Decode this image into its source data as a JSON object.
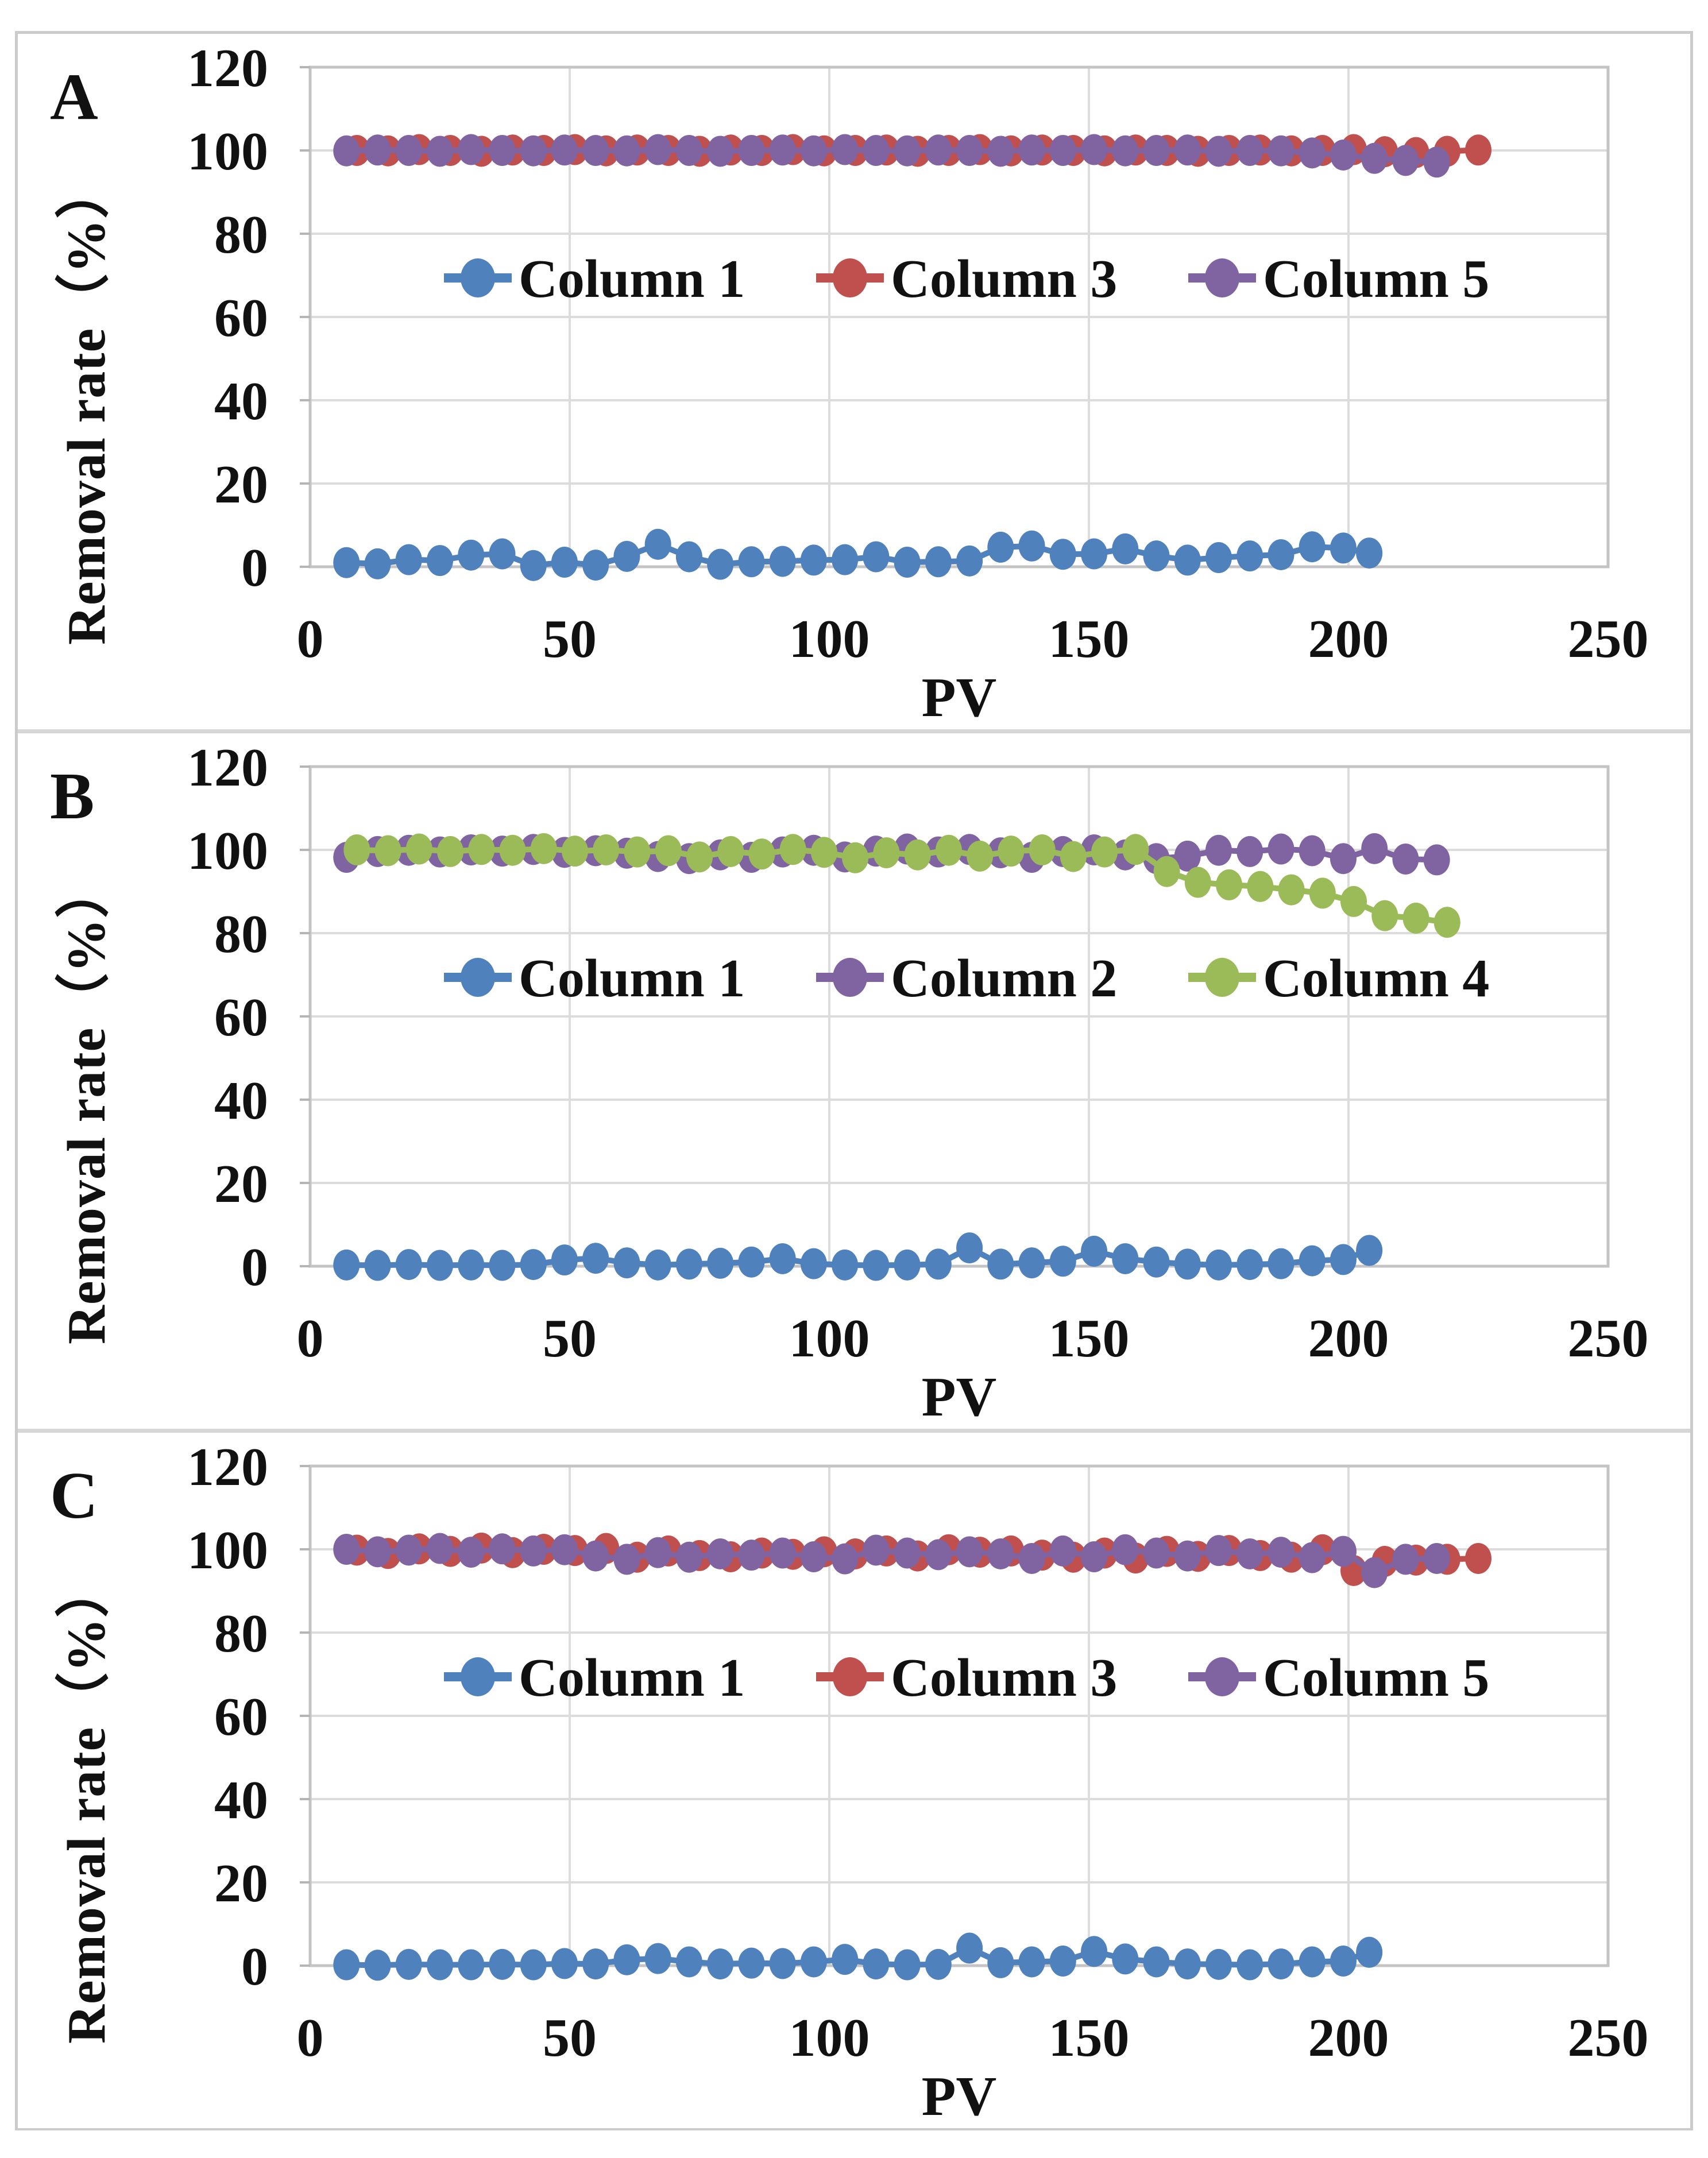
{
  "chart_data": [
    {
      "panel_label": "A",
      "type": "line",
      "xlabel": "PV",
      "ylabel": "Removal rate（%）",
      "xlim": [
        0,
        250
      ],
      "ylim": [
        0,
        120
      ],
      "x_ticks": [
        0,
        50,
        100,
        150,
        200,
        250
      ],
      "y_ticks": [
        0,
        20,
        40,
        60,
        80,
        100,
        120
      ],
      "grid": true,
      "legend_position": "inside-middle",
      "series": [
        {
          "name": "Column 1",
          "color": "#4F81BD",
          "x": [
            7,
            13,
            19,
            25,
            31,
            37,
            43,
            49,
            55,
            61,
            67,
            73,
            79,
            85,
            91,
            97,
            103,
            109,
            115,
            121,
            127,
            133,
            139,
            145,
            151,
            157,
            163,
            169,
            175,
            181,
            187,
            193,
            199,
            204
          ],
          "y": [
            1.0,
            0.7,
            1.7,
            1.5,
            2.8,
            3.1,
            0.3,
            1.1,
            0.4,
            2.5,
            5.4,
            2.4,
            0.6,
            1.2,
            1.3,
            1.6,
            1.7,
            2.4,
            1.1,
            1.2,
            1.4,
            4.7,
            5.0,
            3.0,
            3.1,
            4.3,
            2.6,
            1.6,
            2.2,
            2.6,
            2.9,
            4.8,
            4.5,
            3.3
          ]
        },
        {
          "name": "Column 3",
          "color": "#C0504D",
          "x": [
            9,
            15,
            21,
            27,
            33,
            39,
            45,
            51,
            57,
            63,
            69,
            75,
            81,
            87,
            93,
            99,
            105,
            111,
            117,
            123,
            129,
            135,
            141,
            147,
            153,
            159,
            165,
            171,
            177,
            183,
            189,
            195,
            201,
            207,
            213,
            219,
            225
          ],
          "y": [
            100,
            99.9,
            100.2,
            100,
            99.8,
            100.1,
            100,
            100.2,
            99.9,
            100.1,
            100,
            99.8,
            100.1,
            100,
            100.2,
            99.9,
            100,
            100.1,
            99.8,
            100,
            100.2,
            99.9,
            100.1,
            100,
            99.9,
            100.1,
            100,
            99.8,
            100,
            100.1,
            99.9,
            100,
            100.2,
            99.7,
            99.5,
            99.8,
            100.1
          ]
        },
        {
          "name": "Column 5",
          "color": "#8064A2",
          "x": [
            7,
            13,
            19,
            25,
            31,
            37,
            43,
            49,
            55,
            61,
            67,
            73,
            79,
            85,
            91,
            97,
            103,
            109,
            115,
            121,
            127,
            133,
            139,
            145,
            151,
            157,
            163,
            169,
            175,
            181,
            187,
            193,
            199,
            205,
            211,
            217
          ],
          "y": [
            99.9,
            100.1,
            100,
            99.8,
            100.2,
            100,
            99.9,
            100.1,
            100,
            99.9,
            100.2,
            100,
            99.8,
            100,
            100.1,
            99.9,
            100.2,
            100,
            99.9,
            100.1,
            100,
            99.8,
            100.1,
            100,
            100.2,
            99.9,
            100,
            100.1,
            99.8,
            100,
            99.9,
            99.4,
            98.9,
            98.1,
            97.6,
            97.2
          ]
        }
      ]
    },
    {
      "panel_label": "B",
      "type": "line",
      "xlabel": "PV",
      "ylabel": "Removal rate（%）",
      "xlim": [
        0,
        250
      ],
      "ylim": [
        0,
        120
      ],
      "x_ticks": [
        0,
        50,
        100,
        150,
        200,
        250
      ],
      "y_ticks": [
        0,
        20,
        40,
        60,
        80,
        100,
        120
      ],
      "grid": true,
      "legend_position": "inside-middle",
      "series": [
        {
          "name": "Column 1",
          "color": "#4F81BD",
          "x": [
            7,
            13,
            19,
            25,
            31,
            37,
            43,
            49,
            55,
            61,
            67,
            73,
            79,
            85,
            91,
            97,
            103,
            109,
            115,
            121,
            127,
            133,
            139,
            145,
            151,
            157,
            163,
            169,
            175,
            181,
            187,
            193,
            199,
            204
          ],
          "y": [
            0.3,
            0.2,
            0.4,
            0.2,
            0.3,
            0.2,
            0.4,
            1.5,
            1.9,
            0.8,
            0.3,
            0.5,
            0.7,
            1.0,
            1.8,
            0.6,
            0.3,
            0.2,
            0.3,
            0.5,
            4.4,
            0.5,
            0.8,
            1.2,
            3.6,
            1.8,
            1.0,
            0.5,
            0.3,
            0.4,
            0.6,
            1.3,
            1.6,
            3.8
          ]
        },
        {
          "name": "Column 2",
          "color": "#8064A2",
          "x": [
            7,
            13,
            19,
            25,
            31,
            37,
            43,
            49,
            55,
            61,
            67,
            73,
            79,
            85,
            91,
            97,
            103,
            109,
            115,
            121,
            127,
            133,
            139,
            145,
            151,
            157,
            163,
            169,
            175,
            181,
            187,
            193,
            199,
            205,
            211,
            217
          ],
          "y": [
            98.2,
            99.6,
            99.9,
            99.5,
            100.0,
            99.7,
            100.1,
            99.4,
            99.8,
            99.2,
            98.4,
            97.9,
            98.8,
            98.2,
            99.5,
            99.9,
            98.3,
            99.7,
            100.2,
            99.5,
            100.1,
            99.3,
            98.2,
            99.6,
            100.0,
            98.8,
            97.9,
            98.5,
            99.9,
            99.6,
            100.2,
            99.8,
            97.9,
            100.3,
            97.8,
            97.6
          ]
        },
        {
          "name": "Column 4",
          "color": "#9BBB59",
          "x": [
            9,
            15,
            21,
            27,
            33,
            39,
            45,
            51,
            57,
            63,
            69,
            75,
            81,
            87,
            93,
            99,
            105,
            111,
            117,
            123,
            129,
            135,
            141,
            147,
            153,
            159,
            165,
            171,
            177,
            183,
            189,
            195,
            201,
            207,
            213,
            219
          ],
          "y": [
            100.0,
            99.8,
            100.2,
            99.6,
            100.1,
            99.9,
            100.3,
            99.7,
            100.0,
            99.5,
            99.8,
            98.3,
            99.6,
            99.0,
            100.1,
            99.4,
            98.1,
            99.3,
            98.8,
            99.9,
            98.5,
            99.7,
            100.0,
            98.4,
            99.5,
            100.1,
            94.8,
            92.2,
            91.6,
            91.2,
            90.4,
            89.6,
            87.6,
            84.2,
            83.6,
            82.6
          ]
        }
      ]
    },
    {
      "panel_label": "C",
      "type": "line",
      "xlabel": "PV",
      "ylabel": "Removal rate（%）",
      "xlim": [
        0,
        250
      ],
      "ylim": [
        0,
        120
      ],
      "x_ticks": [
        0,
        50,
        100,
        150,
        200,
        250
      ],
      "y_ticks": [
        0,
        20,
        40,
        60,
        80,
        100,
        120
      ],
      "grid": true,
      "legend_position": "inside-middle",
      "series": [
        {
          "name": "Column 1",
          "color": "#4F81BD",
          "x": [
            7,
            13,
            19,
            25,
            31,
            37,
            43,
            49,
            55,
            61,
            67,
            73,
            79,
            85,
            91,
            97,
            103,
            109,
            115,
            121,
            127,
            133,
            139,
            145,
            151,
            157,
            163,
            169,
            175,
            181,
            187,
            193,
            199,
            204
          ],
          "y": [
            0.2,
            0.1,
            0.3,
            0.2,
            0.2,
            0.3,
            0.2,
            0.5,
            0.4,
            1.4,
            1.7,
            0.9,
            0.4,
            0.6,
            0.5,
            0.9,
            1.5,
            0.4,
            0.2,
            0.3,
            4.2,
            0.7,
            0.9,
            1.1,
            3.4,
            1.6,
            0.9,
            0.4,
            0.3,
            0.2,
            0.4,
            0.9,
            1.1,
            3.2
          ]
        },
        {
          "name": "Column 3",
          "color": "#C0504D",
          "x": [
            9,
            15,
            21,
            27,
            33,
            39,
            45,
            51,
            57,
            63,
            69,
            75,
            81,
            87,
            93,
            99,
            105,
            111,
            117,
            123,
            129,
            135,
            141,
            147,
            153,
            159,
            165,
            171,
            177,
            183,
            189,
            195,
            201,
            207,
            213,
            219,
            225
          ],
          "y": [
            99.8,
            99.0,
            100.1,
            99.5,
            100.3,
            99.2,
            100.0,
            99.7,
            100.2,
            98.1,
            99.6,
            98.5,
            98.2,
            99.1,
            98.8,
            99.4,
            98.9,
            99.6,
            98.4,
            99.9,
            99.3,
            99.6,
            98.6,
            98.1,
            99.1,
            97.9,
            99.5,
            98.3,
            99.7,
            98.5,
            98.1,
            99.9,
            94.9,
            97.1,
            97.4,
            97.6,
            97.8
          ]
        },
        {
          "name": "Column 5",
          "color": "#8064A2",
          "x": [
            7,
            13,
            19,
            25,
            31,
            37,
            43,
            49,
            55,
            61,
            67,
            73,
            79,
            85,
            91,
            97,
            103,
            109,
            115,
            121,
            127,
            133,
            139,
            145,
            151,
            157,
            163,
            169,
            175,
            181,
            187,
            193,
            199,
            205,
            211,
            217
          ],
          "y": [
            100.0,
            99.4,
            99.8,
            100.2,
            99.3,
            100.1,
            99.6,
            99.9,
            98.4,
            97.6,
            99.2,
            98.1,
            98.9,
            98.6,
            99.1,
            98.2,
            97.7,
            99.8,
            99.1,
            98.7,
            99.4,
            98.9,
            97.8,
            99.6,
            98.2,
            99.9,
            99.1,
            98.4,
            99.7,
            98.9,
            99.3,
            98.0,
            99.5,
            94.4,
            97.6,
            97.8
          ]
        }
      ]
    }
  ]
}
